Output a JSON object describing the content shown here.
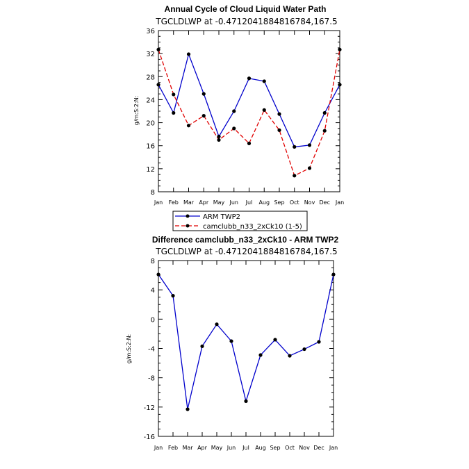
{
  "chart_data": [
    {
      "type": "line",
      "title": "Annual Cycle of Cloud Liquid Water Path",
      "subtitle": "TGCLDLWP  at  -0.4712041884816784,167.5",
      "ylabel": "g/m:S:2:N:",
      "xlabel": "",
      "categories": [
        "Jan",
        "Feb",
        "Mar",
        "Apr",
        "May",
        "Jun",
        "Jul",
        "Aug",
        "Sep",
        "Oct",
        "Nov",
        "Dec",
        "Jan"
      ],
      "ylim": [
        8,
        36
      ],
      "yticks": [
        "8",
        "12",
        "16",
        "20",
        "24",
        "28",
        "32",
        "36"
      ],
      "series": [
        {
          "name": "ARM TWP2",
          "color": "#0000cc",
          "dash": "solid",
          "values": [
            26.6,
            21.7,
            31.9,
            25.0,
            17.6,
            22.0,
            27.7,
            27.2,
            21.5,
            15.8,
            16.1,
            21.7,
            26.6
          ]
        },
        {
          "name": "camclubb_n33_2xCk10 (1-5)",
          "color": "#e00000",
          "dash": "dashed",
          "values": [
            32.7,
            24.9,
            19.5,
            21.2,
            17.0,
            19.0,
            16.4,
            22.2,
            18.7,
            10.8,
            12.1,
            18.6,
            32.7
          ]
        }
      ],
      "legend_placement": "bottom-left"
    },
    {
      "type": "line",
      "title": "Difference camclubb_n33_2xCk10 - ARM TWP2",
      "subtitle": "TGCLDLWP  at  -0.4712041884816784,167.5",
      "ylabel": "g/m:S:2:N:",
      "xlabel": "",
      "categories": [
        "Jan",
        "Feb",
        "Mar",
        "Apr",
        "May",
        "Jun",
        "Jul",
        "Aug",
        "Sep",
        "Oct",
        "Nov",
        "Dec",
        "Jan"
      ],
      "ylim": [
        -16,
        8
      ],
      "yticks": [
        "-16",
        "-12",
        "-8",
        "-4",
        "0",
        "4",
        "8"
      ],
      "series": [
        {
          "name": "",
          "color": "#0000cc",
          "dash": "solid",
          "values": [
            6.1,
            3.2,
            -12.3,
            -3.7,
            -0.7,
            -3.0,
            -11.2,
            -4.9,
            -2.8,
            -5.0,
            -4.1,
            -3.1,
            6.1
          ]
        }
      ]
    }
  ]
}
